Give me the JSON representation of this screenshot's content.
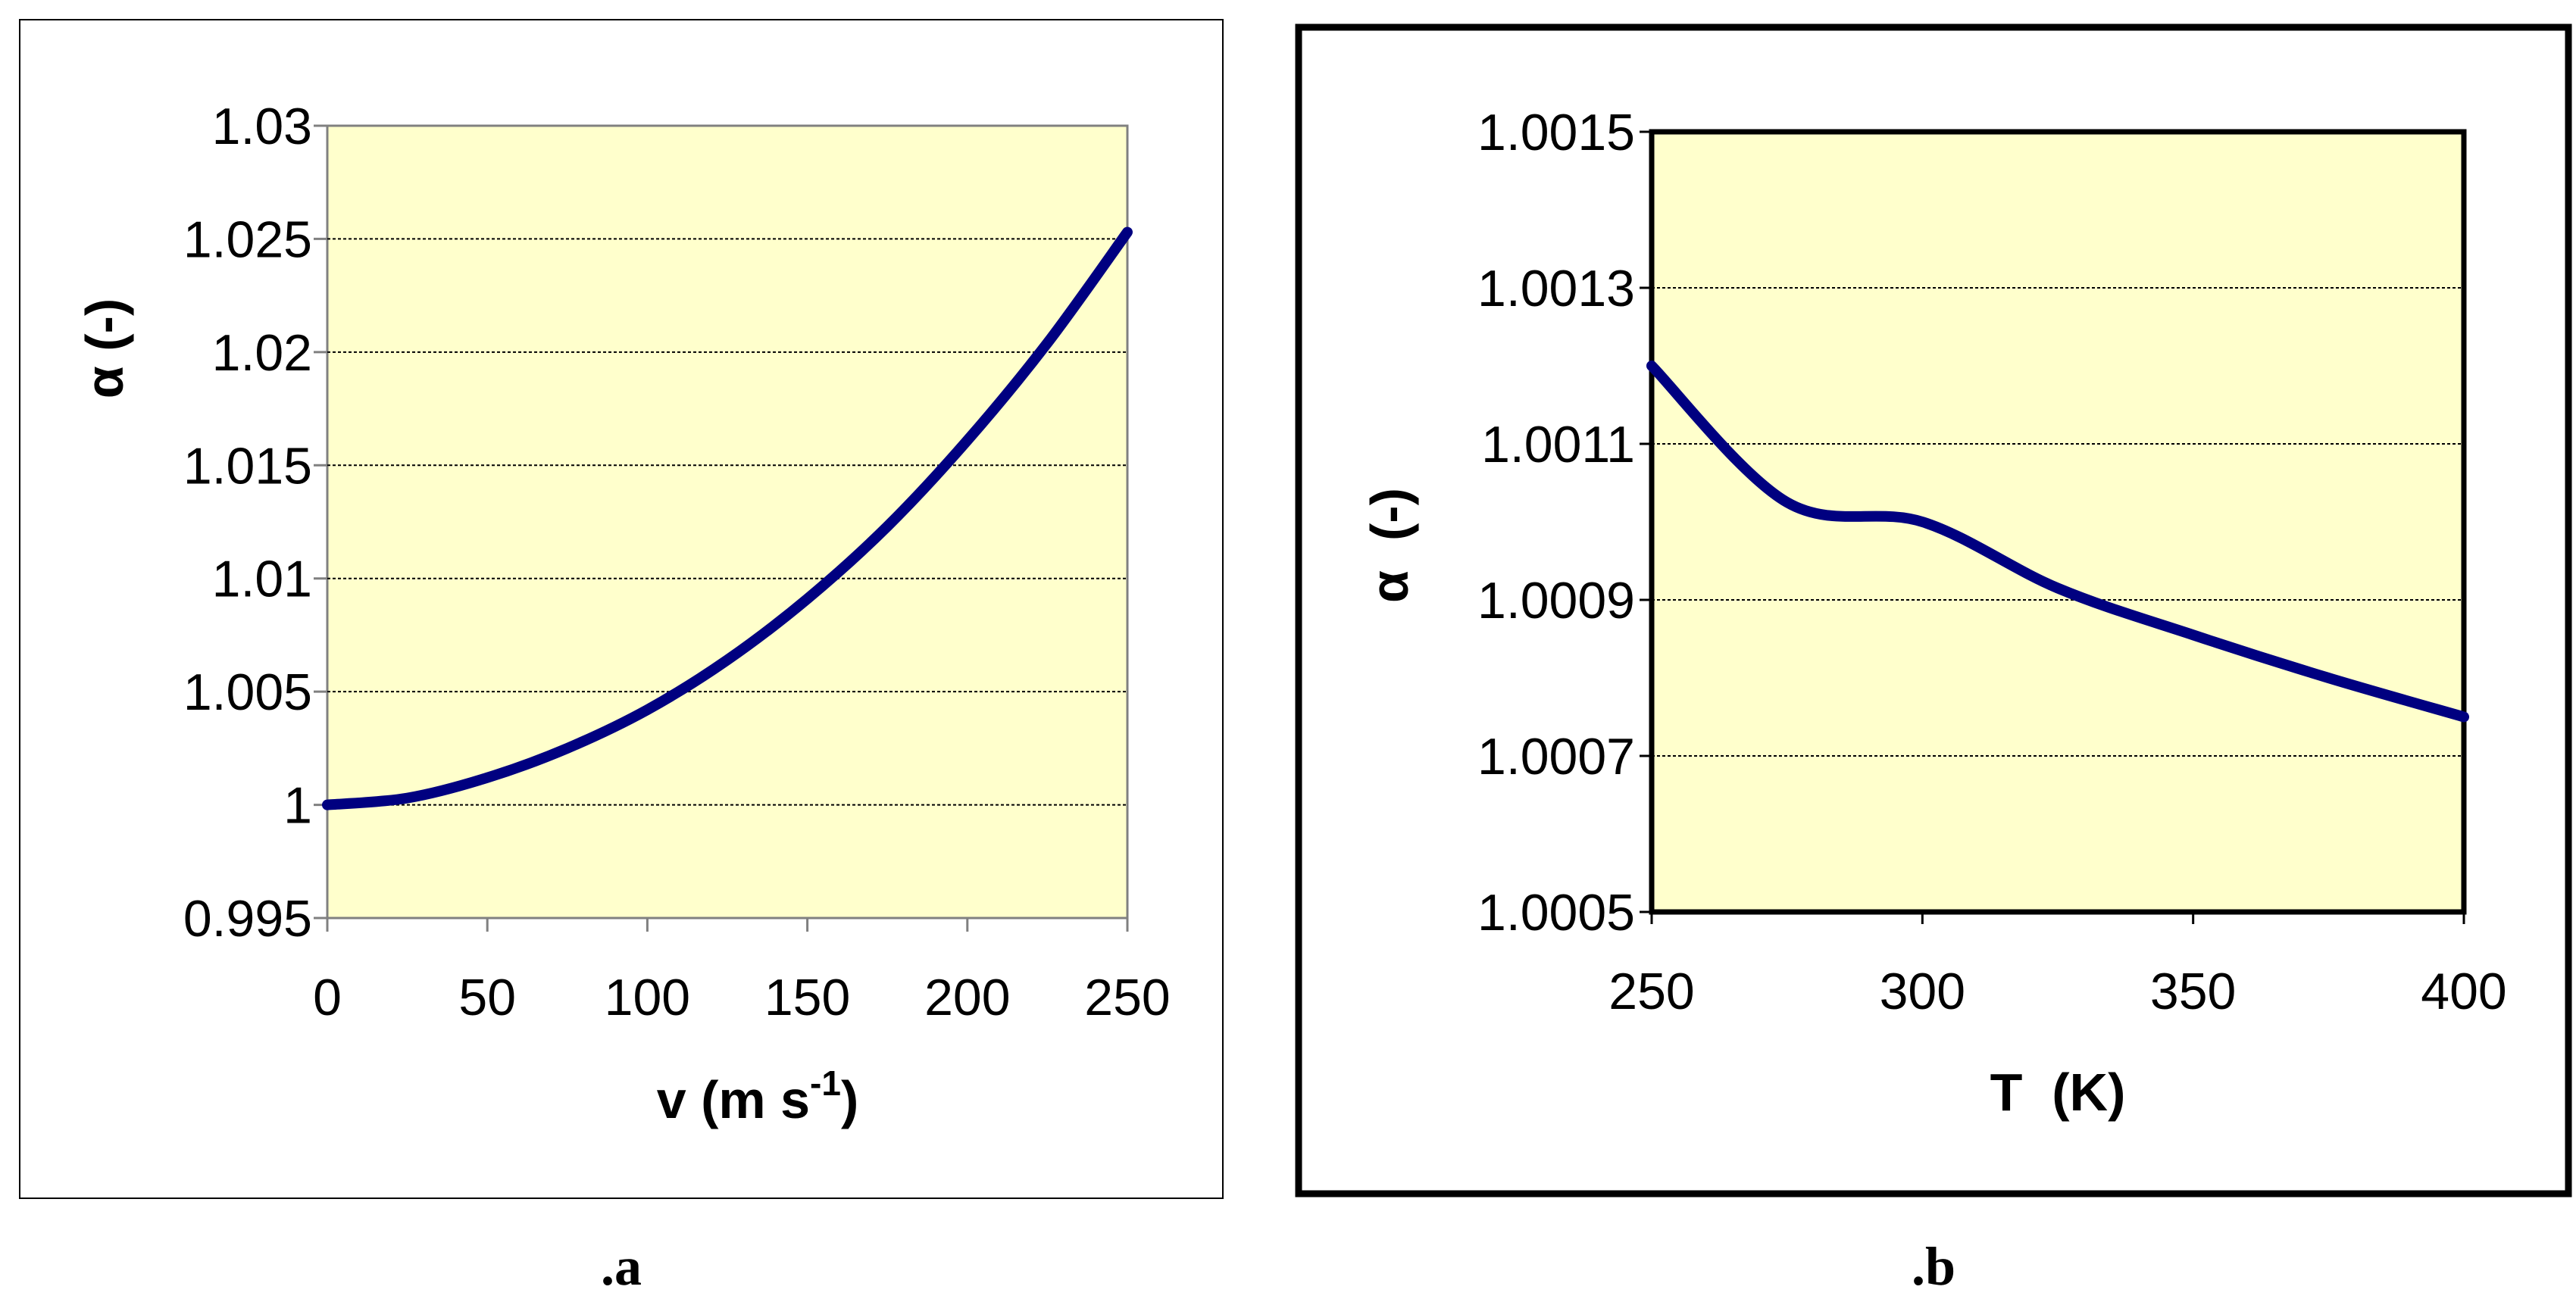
{
  "chart_data": [
    {
      "type": "line",
      "caption": ".a",
      "xlabel": "v (m s",
      "xlabel_sup": "-1",
      "xlabel_tail": ")",
      "ylabel": "α (-)",
      "xlim": [
        0,
        250
      ],
      "ylim": [
        0.995,
        1.03
      ],
      "xticks": [
        0,
        50,
        100,
        150,
        200,
        250
      ],
      "yticks": [
        0.995,
        1,
        1.005,
        1.01,
        1.015,
        1.02,
        1.025,
        1.03
      ],
      "xtick_labels": [
        "0",
        "50",
        "100",
        "150",
        "200",
        "250"
      ],
      "ytick_labels": [
        "0.995",
        "1",
        "1.005",
        "1.01",
        "1.015",
        "1.02",
        "1.025",
        "1.03"
      ],
      "grid": "horizontal",
      "plot_bg": "#ffffcc",
      "line_color": "#000080",
      "series": [
        {
          "x": [
            0,
            25,
            50,
            75,
            100,
            125,
            150,
            175,
            200,
            225,
            250
          ],
          "y": [
            1.0,
            1.0003,
            1.0012,
            1.0025,
            1.0042,
            1.0064,
            1.0091,
            1.0123,
            1.0161,
            1.0204,
            1.0253
          ]
        }
      ]
    },
    {
      "type": "line",
      "caption": ".b",
      "xlabel": "T  (K)",
      "ylabel": "α  (-)",
      "xlim": [
        250,
        400
      ],
      "ylim": [
        1.0005,
        1.0015
      ],
      "xticks": [
        250,
        300,
        350,
        400
      ],
      "yticks": [
        1.0005,
        1.0007,
        1.0009,
        1.0011,
        1.0013,
        1.0015
      ],
      "xtick_labels": [
        "250",
        "300",
        "350",
        "400"
      ],
      "ytick_labels": [
        "1.0005",
        "1.0007",
        "1.0009",
        "1.0011",
        "1.0013",
        "1.0015"
      ],
      "grid": "horizontal",
      "plot_bg": "#ffffcc",
      "line_color": "#000080",
      "series": [
        {
          "x": [
            250,
            275,
            300,
            325,
            350,
            375,
            400
          ],
          "y": [
            1.0012,
            1.001025,
            1.001,
            1.000915,
            1.000855,
            1.0008,
            1.00075
          ]
        }
      ]
    }
  ]
}
